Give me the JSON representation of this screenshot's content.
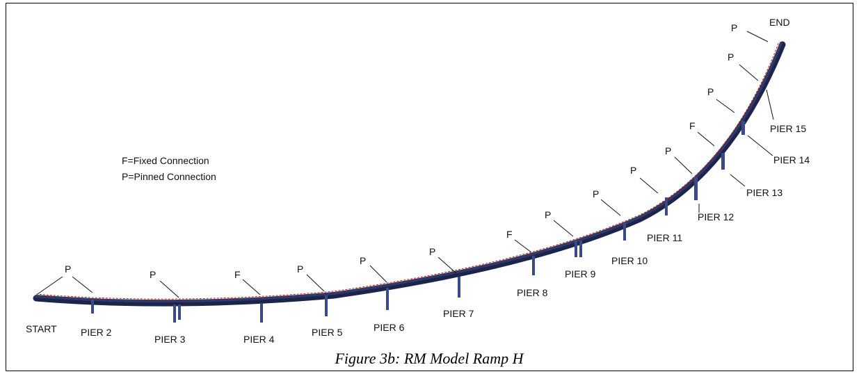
{
  "legend": {
    "fixed": "F=Fixed Connection",
    "pinned": "P=Pinned Connection"
  },
  "endpoints": {
    "start": "START",
    "end": "END"
  },
  "piers": [
    "PIER 2",
    "PIER 3",
    "PIER 4",
    "PIER 5",
    "PIER 6",
    "PIER 7",
    "PIER 8",
    "PIER 9",
    "PIER 10",
    "PIER 11",
    "PIER 12",
    "PIER 13",
    "PIER 14",
    "PIER 15"
  ],
  "connections": [
    "P",
    "P",
    "F",
    "P",
    "P",
    "P",
    "F",
    "P",
    "P",
    "P",
    "P",
    "F",
    "P",
    "P",
    "P"
  ],
  "caption": "Figure 3b: RM Model Ramp H",
  "colors": {
    "deck": "#2f3a6b",
    "deck_dark": "#1c2448",
    "pier": "#3a4a82",
    "centerline": "#cc2222"
  }
}
